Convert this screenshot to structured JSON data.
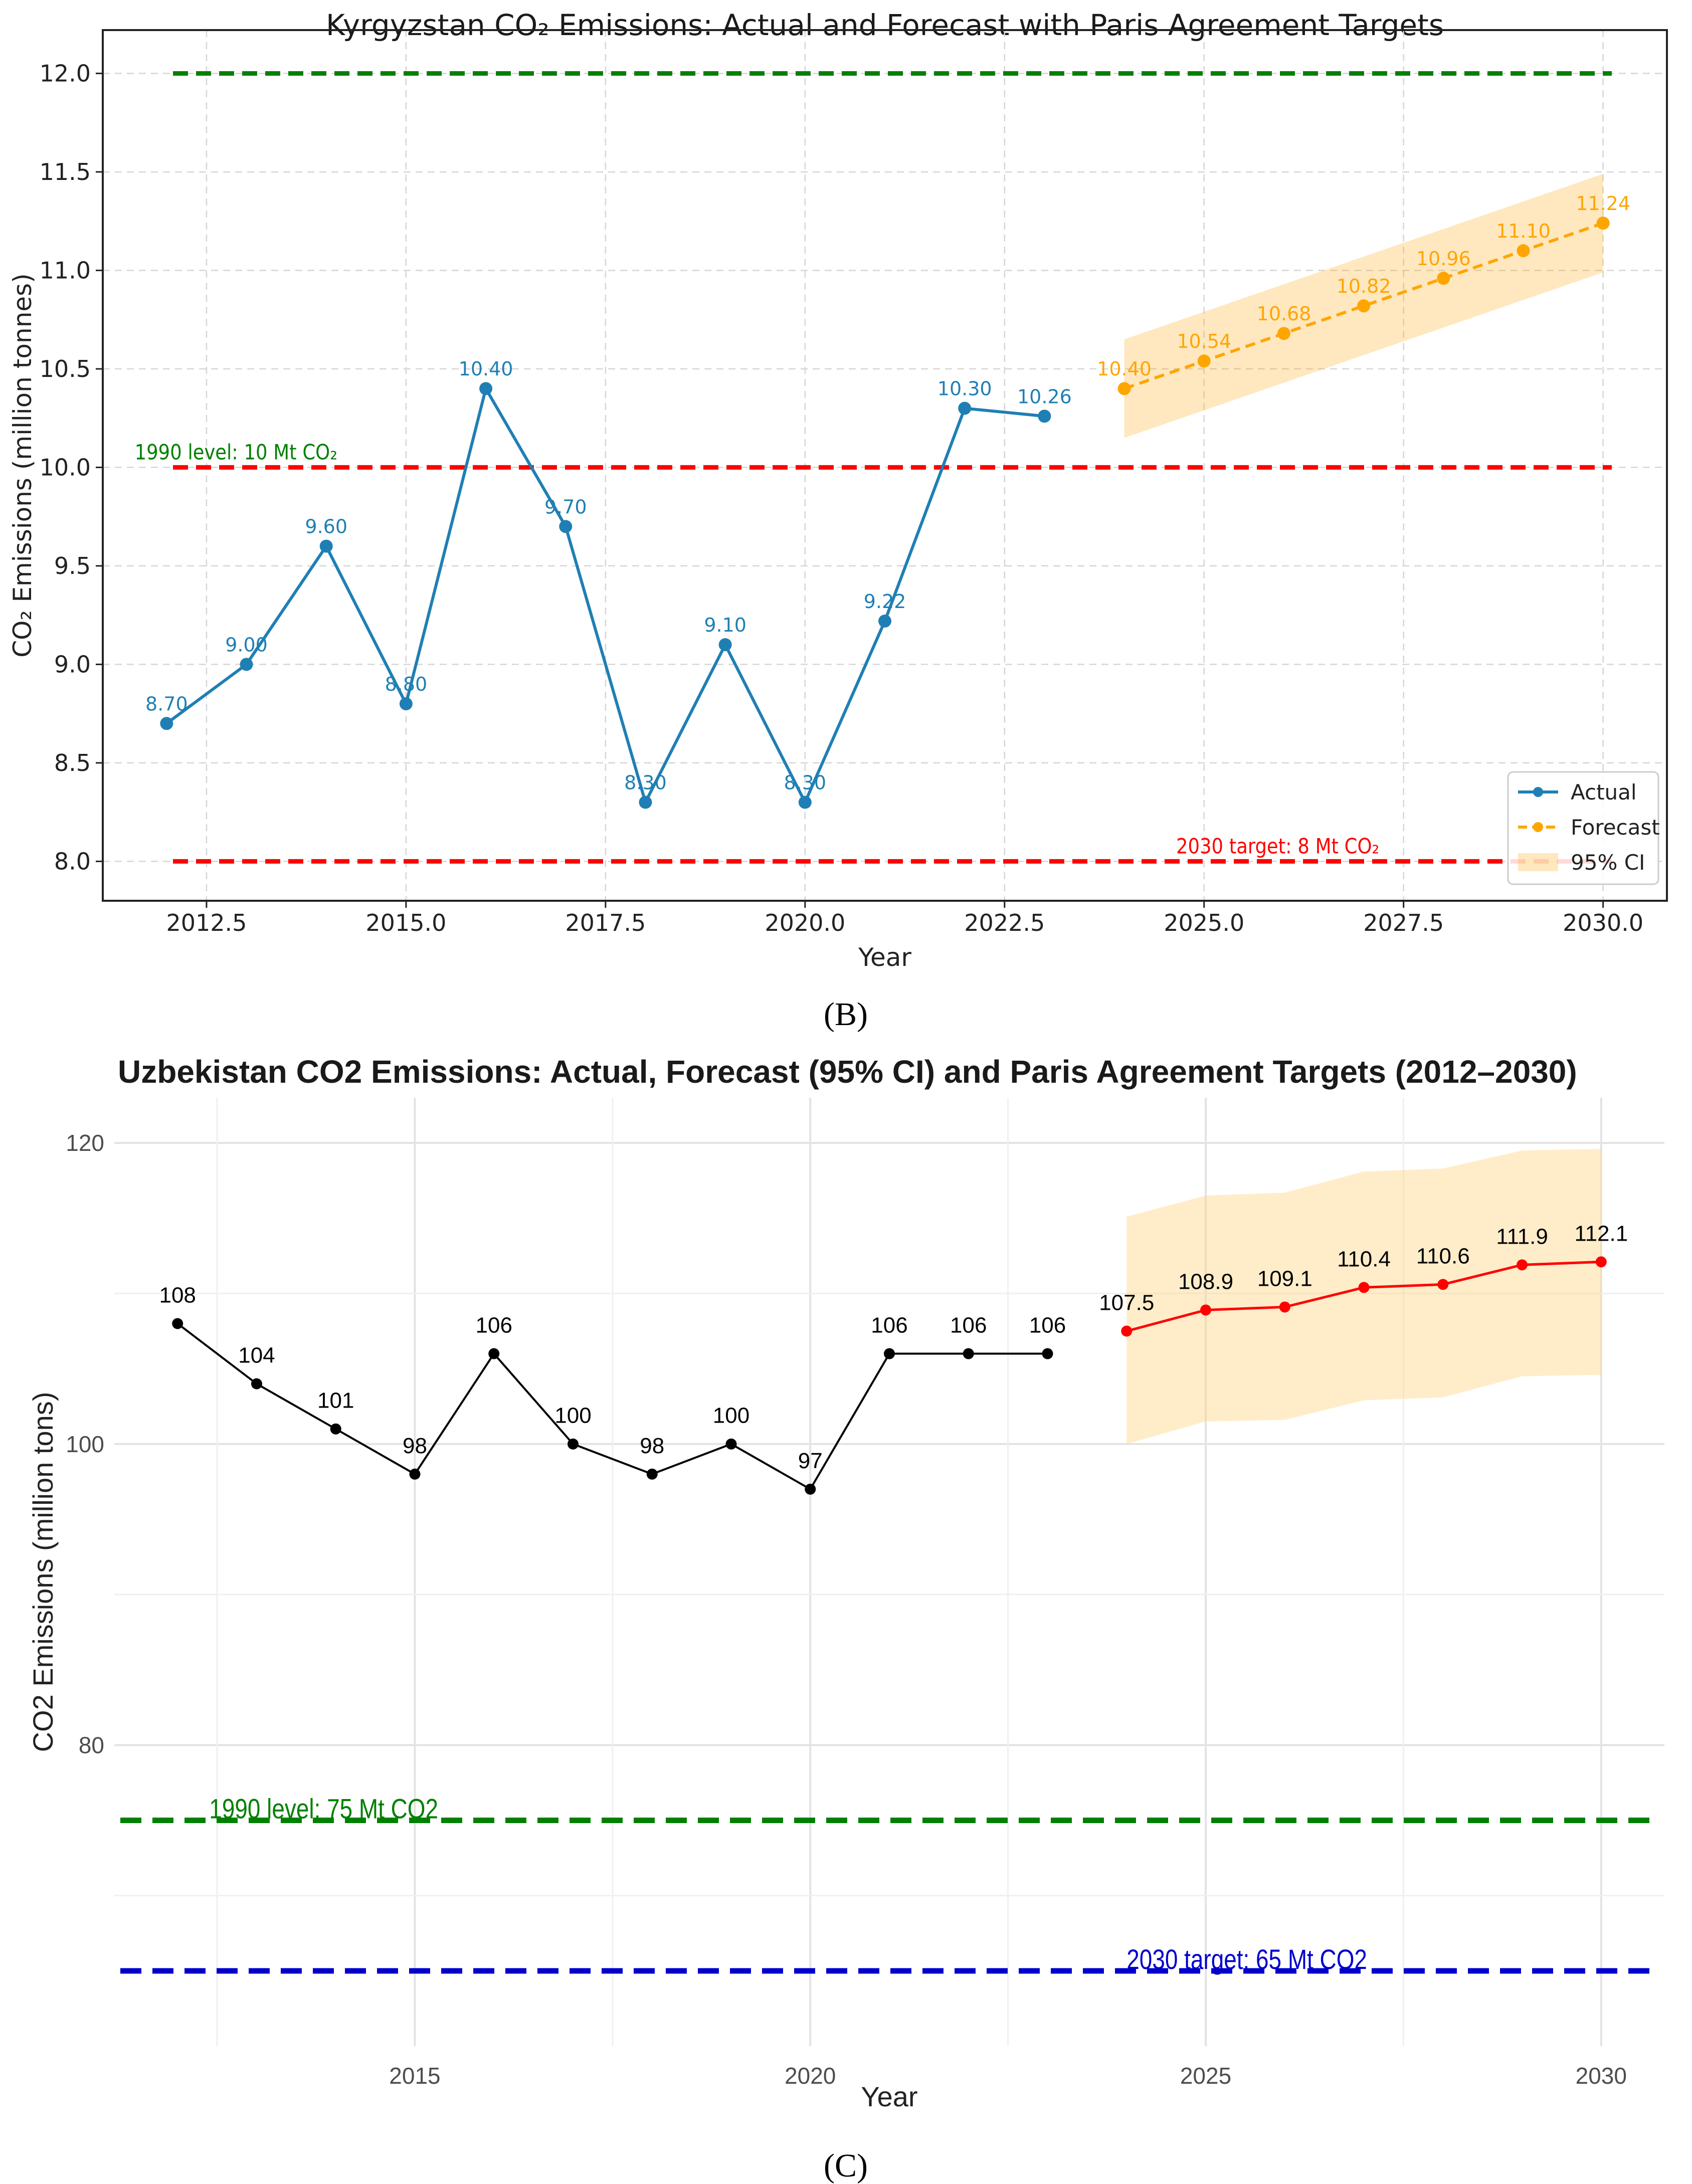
{
  "chart_data": [
    {
      "type": "line",
      "panel": "(B)",
      "title": "Kyrgyzstan CO₂ Emissions: Actual and Forecast with Paris Agreement Targets",
      "xlabel": "Year",
      "ylabel": "CO₂ Emissions (million tonnes)",
      "xlim": [
        2011.2,
        2030.8
      ],
      "ylim": [
        7.8,
        12.22
      ],
      "xticks": [
        2012.5,
        2015.0,
        2017.5,
        2020.0,
        2022.5,
        2025.0,
        2027.5,
        2030.0
      ],
      "xtick_labels": [
        "2012.5",
        "2015.0",
        "2017.5",
        "2020.0",
        "2022.5",
        "2025.0",
        "2027.5",
        "2030.0"
      ],
      "yticks": [
        8.0,
        8.5,
        9.0,
        9.5,
        10.0,
        10.5,
        11.0,
        11.5,
        12.0
      ],
      "ytick_labels": [
        "8.0",
        "8.5",
        "9.0",
        "9.5",
        "10.0",
        "10.5",
        "11.0",
        "11.5",
        "12.0"
      ],
      "grid": true,
      "series": [
        {
          "name": "Actual",
          "color": "#1f7fb4",
          "x": [
            2012,
            2013,
            2014,
            2015,
            2016,
            2017,
            2018,
            2019,
            2020,
            2021,
            2022,
            2023
          ],
          "values": [
            8.7,
            9.0,
            9.6,
            8.8,
            10.4,
            9.7,
            8.3,
            9.1,
            8.3,
            9.22,
            10.3,
            10.26
          ],
          "labels": [
            "8.70",
            "9.00",
            "9.60",
            "8.80",
            "10.40",
            "9.70",
            "8.30",
            "9.10",
            "8.30",
            "9.22",
            "10.30",
            "10.26"
          ]
        },
        {
          "name": "Forecast",
          "color": "#ffa500",
          "x": [
            2024,
            2025,
            2026,
            2027,
            2028,
            2029,
            2030
          ],
          "values": [
            10.4,
            10.54,
            10.68,
            10.82,
            10.96,
            11.1,
            11.24
          ],
          "labels": [
            "10.40",
            "10.54",
            "10.68",
            "10.82",
            "10.96",
            "11.10",
            "11.24"
          ],
          "ci_lower": [
            10.15,
            10.29,
            10.43,
            10.57,
            10.71,
            10.85,
            10.99
          ],
          "ci_upper": [
            10.65,
            10.79,
            10.93,
            11.07,
            11.21,
            11.35,
            11.49
          ]
        }
      ],
      "reference_lines": [
        {
          "y": 12.0,
          "color": "#008000",
          "label": ""
        },
        {
          "y": 10.0,
          "color": "#ff0000",
          "label": "1990 level: 10 Mt CO₂",
          "label_color": "#008000",
          "label_x": 2011.6
        },
        {
          "y": 8.0,
          "color": "#ff0000",
          "label": "2030 target: 8 Mt CO₂",
          "label_color": "#ff0000",
          "label_x": 2024.65
        }
      ],
      "legend": {
        "position": "bottom-right",
        "entries": [
          {
            "label": "Actual",
            "kind": "line",
            "color": "#1f7fb4"
          },
          {
            "label": "Forecast",
            "kind": "dashed",
            "color": "#ffa500"
          },
          {
            "label": "95% CI",
            "kind": "band",
            "color": "#ffa500"
          }
        ]
      }
    },
    {
      "type": "line",
      "panel": "(C)",
      "title": "Uzbekistan CO2 Emissions: Actual, Forecast (95% CI) and Paris Agreement Targets (2012–2030)",
      "xlabel": "Year",
      "ylabel": "CO2 Emissions (million tons)",
      "xlim": [
        2011.2,
        2030.8
      ],
      "ylim": [
        60,
        123
      ],
      "xticks": [
        2015,
        2020,
        2025,
        2030
      ],
      "xtick_labels": [
        "2015",
        "2020",
        "2025",
        "2030"
      ],
      "yticks": [
        80,
        100,
        120
      ],
      "ytick_labels": [
        "80",
        "100",
        "120"
      ],
      "grid": true,
      "series": [
        {
          "name": "Actual",
          "color": "#000000",
          "x": [
            2012,
            2013,
            2014,
            2015,
            2016,
            2017,
            2018,
            2019,
            2020,
            2021,
            2022,
            2023
          ],
          "values": [
            108,
            104,
            101,
            98,
            106,
            100,
            98,
            100,
            97,
            106,
            106,
            106
          ],
          "labels": [
            "108",
            "104",
            "101",
            "98",
            "106",
            "100",
            "98",
            "100",
            "97",
            "106",
            "106",
            "106"
          ]
        },
        {
          "name": "Forecast",
          "color": "#ff0000",
          "x": [
            2024,
            2025,
            2026,
            2027,
            2028,
            2029,
            2030
          ],
          "values": [
            107.5,
            108.9,
            109.1,
            110.4,
            110.6,
            111.9,
            112.1
          ],
          "labels": [
            "107.5",
            "108.9",
            "109.1",
            "110.4",
            "110.6",
            "111.9",
            "112.1"
          ],
          "ci_lower": [
            100.0,
            101.5,
            101.6,
            102.9,
            103.1,
            104.5,
            104.6
          ],
          "ci_upper": [
            115.1,
            116.5,
            116.7,
            118.1,
            118.3,
            119.5,
            119.6
          ]
        }
      ],
      "reference_lines": [
        {
          "y": 75,
          "color": "#008000",
          "label": "1990 level: 75 Mt CO2",
          "label_color": "#008000",
          "label_x": 2012.4
        },
        {
          "y": 65,
          "color": "#0000cc",
          "label": "2030 target: 65 Mt CO2",
          "label_color": "#0000cc",
          "label_x": 2024.0
        }
      ]
    }
  ]
}
